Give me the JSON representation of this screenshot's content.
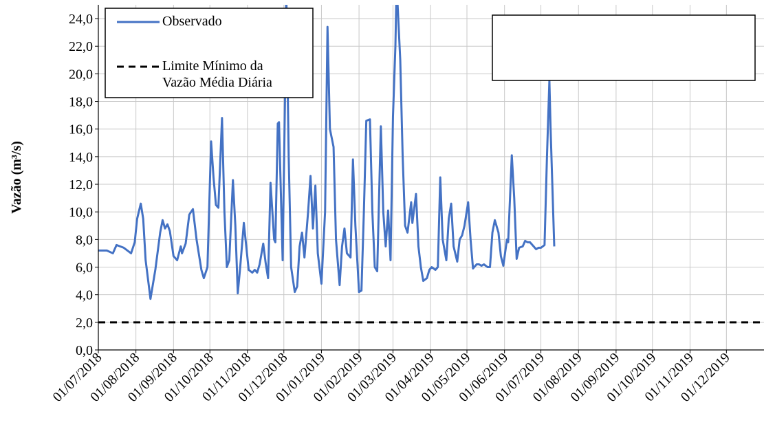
{
  "chart_data": {
    "type": "line",
    "y_label": "Vazão (m³/s)",
    "xlim": [
      "2018-07-01",
      "2020-01-01"
    ],
    "ylim": [
      0,
      25
    ],
    "grid": true,
    "legend": "top-left",
    "xticks": [
      {
        "value": "2018-07-01",
        "label": "01/07/2018"
      },
      {
        "value": "2018-08-01",
        "label": "01/08/2018"
      },
      {
        "value": "2018-09-01",
        "label": "01/09/2018"
      },
      {
        "value": "2018-10-01",
        "label": "01/10/2018"
      },
      {
        "value": "2018-11-01",
        "label": "01/11/2018"
      },
      {
        "value": "2018-12-01",
        "label": "01/12/2018"
      },
      {
        "value": "2019-01-01",
        "label": "01/01/2019"
      },
      {
        "value": "2019-02-01",
        "label": "01/02/2019"
      },
      {
        "value": "2019-03-01",
        "label": "01/03/2019"
      },
      {
        "value": "2019-04-01",
        "label": "01/04/2019"
      },
      {
        "value": "2019-05-01",
        "label": "01/05/2019"
      },
      {
        "value": "2019-06-01",
        "label": "01/06/2019"
      },
      {
        "value": "2019-07-01",
        "label": "01/07/2019"
      },
      {
        "value": "2019-08-01",
        "label": "01/08/2019"
      },
      {
        "value": "2019-09-01",
        "label": "01/09/2019"
      },
      {
        "value": "2019-10-01",
        "label": "01/10/2019"
      },
      {
        "value": "2019-11-01",
        "label": "01/11/2019"
      },
      {
        "value": "2019-12-01",
        "label": "01/12/2019"
      }
    ],
    "yticks": [
      {
        "value": 0,
        "label": "0,0"
      },
      {
        "value": 2,
        "label": "2,0"
      },
      {
        "value": 4,
        "label": "4,0"
      },
      {
        "value": 6,
        "label": "6,0"
      },
      {
        "value": 8,
        "label": "8,0"
      },
      {
        "value": 10,
        "label": "10,0"
      },
      {
        "value": 12,
        "label": "12,0"
      },
      {
        "value": 14,
        "label": "14,0"
      },
      {
        "value": 16,
        "label": "16,0"
      },
      {
        "value": 18,
        "label": "18,0"
      },
      {
        "value": 20,
        "label": "20,0"
      },
      {
        "value": 22,
        "label": "22,0"
      },
      {
        "value": 24,
        "label": "24,0"
      }
    ],
    "series": [
      {
        "name": "Observado",
        "color": "#4472c4",
        "dash": "none",
        "x": [
          "2018-07-01",
          "2018-07-08",
          "2018-07-13",
          "2018-07-16",
          "2018-07-22",
          "2018-07-28",
          "2018-07-31",
          "2018-08-02",
          "2018-08-05",
          "2018-08-07",
          "2018-08-09",
          "2018-08-13",
          "2018-08-17",
          "2018-08-21",
          "2018-08-23",
          "2018-08-25",
          "2018-08-27",
          "2018-08-29",
          "2018-09-01",
          "2018-09-04",
          "2018-09-07",
          "2018-09-08",
          "2018-09-11",
          "2018-09-14",
          "2018-09-17",
          "2018-09-20",
          "2018-09-24",
          "2018-09-26",
          "2018-09-29",
          "2018-10-02",
          "2018-10-04",
          "2018-10-06",
          "2018-10-08",
          "2018-10-11",
          "2018-10-13",
          "2018-10-15",
          "2018-10-17",
          "2018-10-20",
          "2018-10-22",
          "2018-10-24",
          "2018-10-26",
          "2018-10-29",
          "2018-10-31",
          "2018-11-02",
          "2018-11-05",
          "2018-11-07",
          "2018-11-09",
          "2018-11-11",
          "2018-11-14",
          "2018-11-16",
          "2018-11-18",
          "2018-11-20",
          "2018-11-23",
          "2018-11-24",
          "2018-11-26",
          "2018-11-27",
          "2018-11-30",
          "2018-12-02",
          "2018-12-03",
          "2018-12-05",
          "2018-12-07",
          "2018-12-10",
          "2018-12-12",
          "2018-12-14",
          "2018-12-16",
          "2018-12-18",
          "2018-12-21",
          "2018-12-23",
          "2018-12-25",
          "2018-12-27",
          "2018-12-29",
          "2019-01-01",
          "2019-01-04",
          "2019-01-06",
          "2019-01-08",
          "2019-01-11",
          "2019-01-13",
          "2019-01-16",
          "2019-01-18",
          "2019-01-20",
          "2019-01-22",
          "2019-01-25",
          "2019-01-27",
          "2019-01-29",
          "2019-02-01",
          "2019-02-03",
          "2019-02-05",
          "2019-02-07",
          "2019-02-10",
          "2019-02-12",
          "2019-02-14",
          "2019-02-16",
          "2019-02-19",
          "2019-02-21",
          "2019-02-23",
          "2019-02-25",
          "2019-02-27",
          "2019-03-01",
          "2019-03-03",
          "2019-03-04",
          "2019-03-07",
          "2019-03-09",
          "2019-03-11",
          "2019-03-13",
          "2019-03-16",
          "2019-03-17",
          "2019-03-20",
          "2019-03-22",
          "2019-03-24",
          "2019-03-26",
          "2019-03-29",
          "2019-03-31",
          "2019-04-02",
          "2019-04-05",
          "2019-04-07",
          "2019-04-09",
          "2019-04-11",
          "2019-04-14",
          "2019-04-16",
          "2019-04-18",
          "2019-04-20",
          "2019-04-23",
          "2019-04-25",
          "2019-04-27",
          "2019-04-29",
          "2019-05-02",
          "2019-05-04",
          "2019-05-06",
          "2019-05-09",
          "2019-05-11",
          "2019-05-13",
          "2019-05-15",
          "2019-05-18",
          "2019-05-20",
          "2019-05-22",
          "2019-05-24",
          "2019-05-27",
          "2019-05-29",
          "2019-05-31",
          "2019-06-03",
          "2019-06-04",
          "2019-06-07",
          "2019-06-09",
          "2019-06-11",
          "2019-06-13",
          "2019-06-16",
          "2019-06-18",
          "2019-06-20",
          "2019-06-22",
          "2019-06-25",
          "2019-06-27",
          "2019-06-29",
          "2019-07-01",
          "2019-07-04",
          "2019-07-06",
          "2019-07-08",
          "2019-07-09",
          "2019-07-12"
        ],
        "values": [
          7.2,
          7.2,
          7.0,
          7.6,
          7.4,
          7.0,
          7.8,
          9.5,
          10.6,
          9.5,
          6.5,
          3.7,
          5.8,
          8.5,
          9.4,
          8.8,
          9.1,
          8.6,
          6.8,
          6.5,
          7.5,
          7.0,
          7.7,
          9.8,
          10.2,
          8.0,
          5.8,
          5.2,
          6.0,
          15.1,
          12.5,
          10.5,
          10.3,
          16.8,
          10.0,
          6.0,
          6.5,
          12.3,
          9.0,
          4.1,
          6.0,
          9.2,
          7.5,
          5.8,
          5.6,
          5.8,
          5.6,
          6.2,
          7.7,
          6.3,
          5.2,
          12.1,
          8.0,
          7.8,
          16.4,
          16.5,
          6.5,
          18.5,
          26.0,
          14.0,
          6.0,
          4.2,
          4.6,
          7.5,
          8.5,
          6.7,
          10.0,
          12.6,
          8.8,
          11.9,
          7.0,
          4.8,
          10.0,
          23.4,
          16.0,
          14.7,
          8.0,
          4.7,
          7.5,
          8.8,
          7.0,
          6.7,
          13.8,
          9.0,
          4.2,
          4.3,
          10.0,
          16.6,
          16.7,
          10.0,
          6.0,
          5.7,
          16.2,
          10.0,
          7.5,
          10.1,
          6.5,
          16.9,
          22.0,
          26.5,
          21.0,
          14.0,
          9.0,
          8.5,
          10.7,
          9.2,
          11.3,
          7.5,
          6.0,
          5.0,
          5.2,
          5.8,
          6.0,
          5.8,
          6.0,
          12.5,
          8.0,
          6.5,
          9.5,
          10.6,
          7.5,
          6.4,
          8.0,
          8.3,
          9.0,
          10.7,
          8.0,
          5.9,
          6.2,
          6.2,
          6.1,
          6.2,
          6.0,
          6.0,
          8.5,
          9.4,
          8.5,
          6.8,
          6.1,
          8.0,
          7.8,
          14.1,
          11.0,
          6.6,
          7.4,
          7.5,
          7.9,
          7.8,
          7.8,
          7.5,
          7.3,
          7.4,
          7.4,
          7.6,
          14.0,
          19.5,
          16.0,
          7.5
        ]
      },
      {
        "name": "Limite Mínimo da Vazão Média Diária",
        "color": "#000000",
        "dash": "dashed",
        "x": [
          "2018-07-01",
          "2020-01-01"
        ],
        "values": [
          2,
          2
        ]
      }
    ]
  }
}
